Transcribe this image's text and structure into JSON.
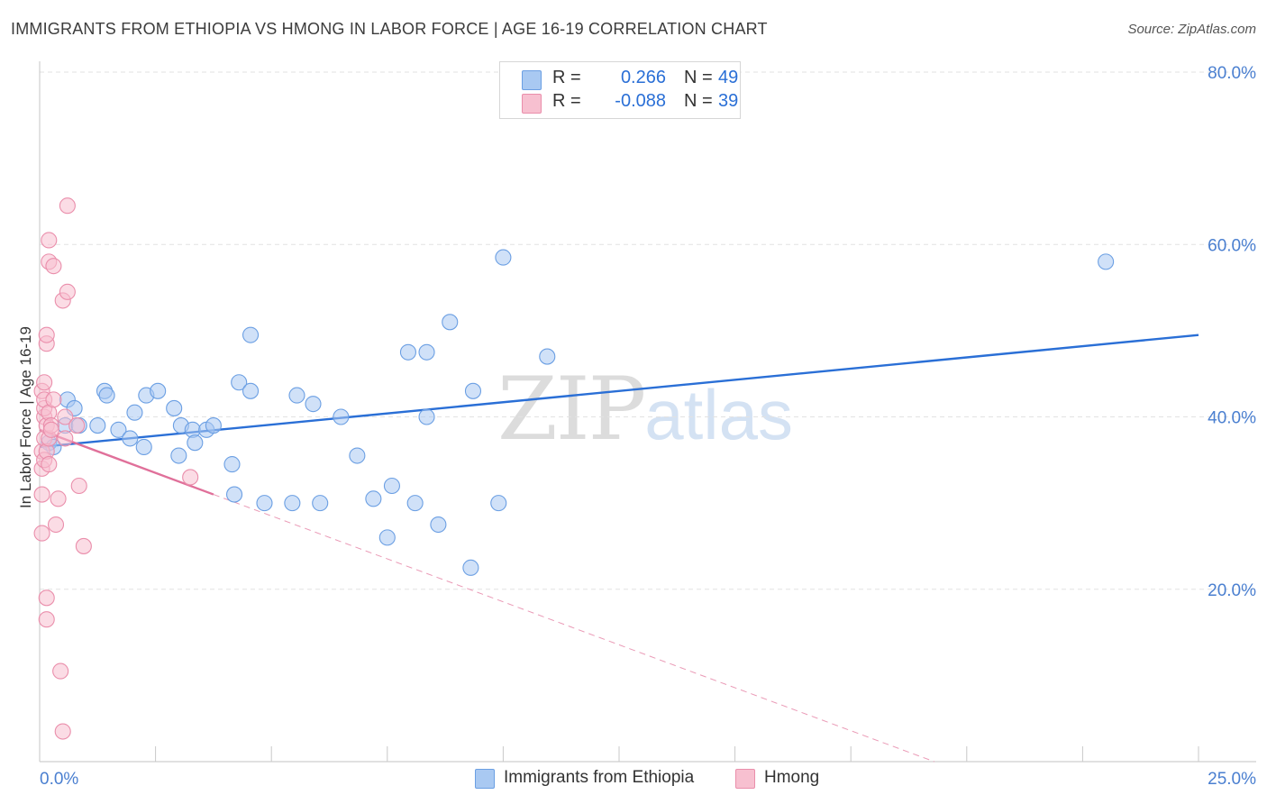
{
  "header": {
    "title": "IMMIGRANTS FROM ETHIOPIA VS HMONG IN LABOR FORCE | AGE 16-19 CORRELATION CHART",
    "source": "Source: ZipAtlas.com"
  },
  "watermark": {
    "zip": "ZIP",
    "atlas": "atlas"
  },
  "legend": {
    "series1": {
      "r_label": "R =",
      "r_value": "0.266",
      "n_label": "N =",
      "n_value": "49",
      "color": "#a9c9f2",
      "border": "#6b9fe3"
    },
    "series2": {
      "r_label": "R =",
      "r_value": "-0.088",
      "n_label": "N =",
      "n_value": "39",
      "color": "#f7c0d0",
      "border": "#ea8eab"
    }
  },
  "bottom_legend": {
    "series1": "Immigrants from Ethiopia",
    "series2": "Hmong"
  },
  "chart_data": {
    "type": "scatter",
    "title": "IMMIGRANTS FROM ETHIOPIA VS HMONG IN LABOR FORCE | AGE 16-19 CORRELATION CHART",
    "xlabel": "",
    "ylabel": "In Labor Force | Age 16-19",
    "xlim": [
      0,
      25
    ],
    "ylim": [
      0,
      80
    ],
    "x_ticks": [
      {
        "value": 0,
        "label": "0.0%"
      },
      {
        "value": 25,
        "label": "25.0%"
      }
    ],
    "y_ticks": [
      {
        "value": 20,
        "label": "20.0%"
      },
      {
        "value": 40,
        "label": "40.0%"
      },
      {
        "value": 60,
        "label": "60.0%"
      },
      {
        "value": 80,
        "label": "80.0%"
      }
    ],
    "grid": true,
    "series": [
      {
        "name": "Immigrants from Ethiopia",
        "color": "#6b9fe3",
        "fill": "#a9c9f2",
        "x": [
          0.2,
          0.3,
          0.55,
          0.6,
          0.75,
          0.85,
          1.25,
          1.4,
          1.45,
          1.7,
          1.95,
          2.05,
          2.25,
          2.3,
          2.55,
          2.9,
          3.0,
          3.05,
          3.3,
          3.35,
          3.6,
          3.75,
          4.15,
          4.2,
          4.3,
          4.55,
          4.55,
          4.85,
          5.45,
          5.55,
          5.9,
          6.05,
          6.5,
          6.85,
          7.2,
          7.5,
          7.6,
          7.95,
          8.1,
          8.35,
          8.35,
          8.6,
          8.85,
          9.3,
          9.35,
          9.9,
          10.0,
          10.95,
          23.0
        ],
        "y": [
          37,
          36.5,
          39,
          42,
          41,
          39,
          39,
          43,
          42.5,
          38.5,
          37.5,
          40.5,
          36.5,
          42.5,
          43,
          41,
          35.5,
          39,
          38.5,
          37,
          38.5,
          39,
          34.5,
          31,
          44,
          49.5,
          43,
          30,
          30,
          42.5,
          41.5,
          30,
          40,
          35.5,
          30.5,
          26,
          32,
          47.5,
          30,
          47.5,
          40,
          27.5,
          51,
          22.5,
          43,
          30,
          58.5,
          47,
          58
        ]
      },
      {
        "name": "Hmong",
        "color": "#ea8eab",
        "fill": "#f7c0d0",
        "x": [
          0.05,
          0.05,
          0.05,
          0.05,
          0.05,
          0.1,
          0.1,
          0.1,
          0.1,
          0.1,
          0.1,
          0.15,
          0.15,
          0.15,
          0.15,
          0.15,
          0.15,
          0.2,
          0.2,
          0.2,
          0.2,
          0.2,
          0.25,
          0.25,
          0.3,
          0.3,
          0.35,
          0.4,
          0.45,
          0.5,
          0.5,
          0.55,
          0.55,
          0.6,
          0.6,
          0.8,
          0.85,
          0.95,
          3.25
        ],
        "y": [
          26.5,
          31,
          34,
          36,
          43,
          35,
          37.5,
          40,
          41,
          42,
          44,
          39,
          16.5,
          19,
          36,
          48.5,
          49.5,
          60.5,
          58,
          37.5,
          40.5,
          34.5,
          39,
          38.5,
          57.5,
          42,
          27.5,
          30.5,
          10.5,
          53.5,
          3.5,
          40,
          37.5,
          54.5,
          64.5,
          39,
          32,
          25,
          33
        ]
      }
    ],
    "trendlines": [
      {
        "series": "Immigrants from Ethiopia",
        "x": [
          0,
          25
        ],
        "y": [
          36.5,
          49.5
        ],
        "style": "solid",
        "color": "#2a6fd6"
      },
      {
        "series": "Hmong",
        "x": [
          0,
          3.75
        ],
        "y": [
          38.5,
          31
        ],
        "style": "solid",
        "color": "#e0709a"
      },
      {
        "series": "Hmong",
        "x": [
          3.75,
          19.3
        ],
        "y": [
          31,
          0
        ],
        "style": "dashed",
        "color": "#ea9ab6"
      }
    ]
  }
}
